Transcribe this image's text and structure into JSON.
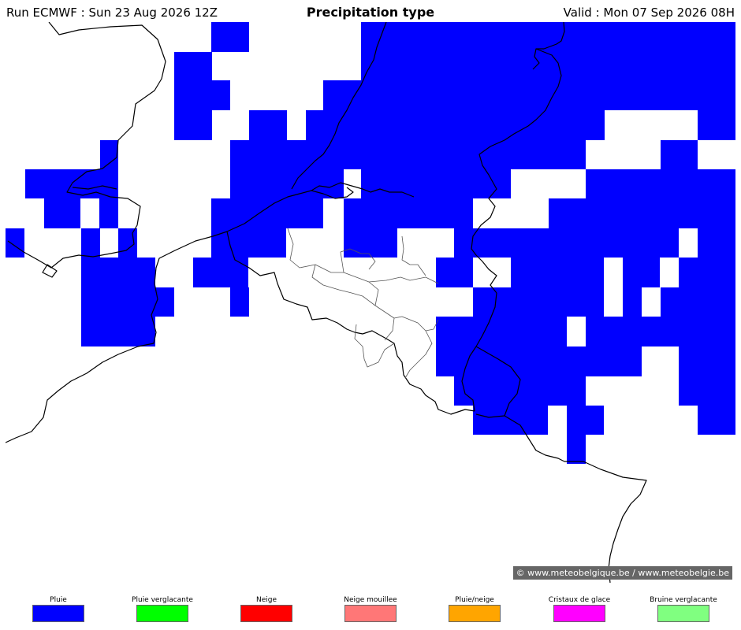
{
  "header": {
    "run": "Run ECMWF : Sun 23 Aug 2026 12Z",
    "title": "Precipitation type",
    "valid": "Valid : Mon 07 Sep 2026 08H"
  },
  "map": {
    "precip_color": "#0000ff",
    "border_color": "#000000",
    "province_color": "#555555",
    "copyright": "© www.meteobelgique.be / www.meteobelgie.be"
  },
  "legend": [
    {
      "label": "Pluie",
      "color": "#0000ff"
    },
    {
      "label": "Pluie verglacante",
      "color": "#00ff00"
    },
    {
      "label": "Neige",
      "color": "#ff0000"
    },
    {
      "label": "Neige mouillee",
      "color": "#ff7777"
    },
    {
      "label": "Pluie/neige",
      "color": "#ffa500"
    },
    {
      "label": "Cristaux de glace",
      "color": "#ff00ff"
    },
    {
      "label": "Bruine verglacante",
      "color": "#80ff80"
    }
  ]
}
